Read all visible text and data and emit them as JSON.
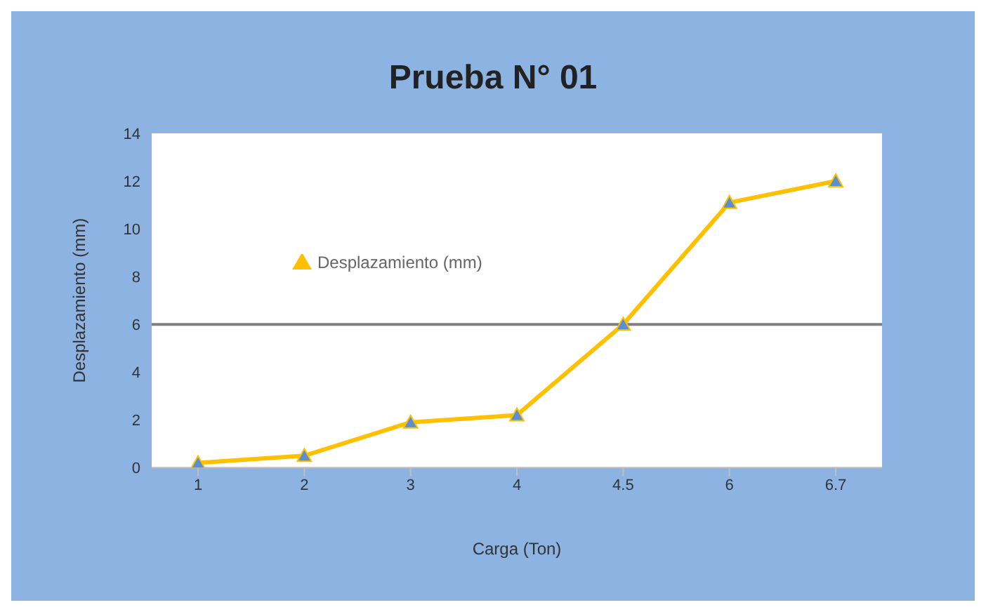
{
  "chart_data": {
    "type": "line",
    "title": "Prueba N° 01",
    "xlabel": "Carga (Ton)",
    "ylabel": "Desplazamiento (mm)",
    "categories": [
      "1",
      "2",
      "3",
      "4",
      "4.5",
      "6",
      "6.7"
    ],
    "series": [
      {
        "name": "Desplazamiento (mm)",
        "color": "#ffc000",
        "values": [
          0.2,
          0.5,
          1.9,
          2.2,
          6.0,
          11.1,
          12.0
        ]
      }
    ],
    "ylim": [
      0,
      14
    ],
    "yticks": [
      0,
      2,
      4,
      6,
      8,
      10,
      12,
      14
    ],
    "grid": false,
    "legend": "top left",
    "marker": "triangle",
    "line_style": "solid",
    "ref_lines": [
      {
        "axis": "y",
        "value": 6,
        "color": "#808080"
      }
    ]
  }
}
